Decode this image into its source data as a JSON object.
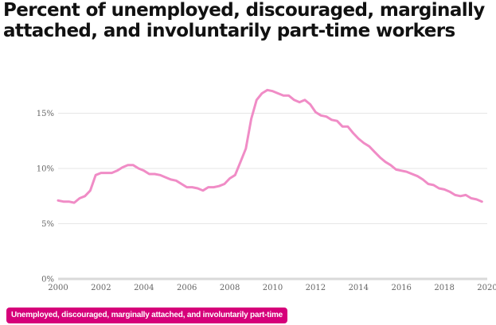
{
  "colors": {
    "series": "#f08cc6",
    "legend_bg": "#d6007a",
    "grid": "#e6e6e6"
  },
  "chart_data": {
    "type": "line",
    "title": "Percent of unemployed, discouraged, marginally attached, and involuntarily part-time workers",
    "xlabel": "",
    "ylabel": "",
    "xlim": [
      2000,
      2020
    ],
    "ylim": [
      0,
      20
    ],
    "x_ticks": [
      "2000",
      "2002",
      "2004",
      "2006",
      "2008",
      "2010",
      "2012",
      "2014",
      "2016",
      "2018",
      "2020"
    ],
    "y_ticks": [
      "0%",
      "5%",
      "10%",
      "15%"
    ],
    "grid": true,
    "legend_position": "bottom-left",
    "series": [
      {
        "name": "Unemployed, discouraged, marginally attached, and involuntarily part-time",
        "x": [
          2000.0,
          2000.25,
          2000.5,
          2000.75,
          2001.0,
          2001.25,
          2001.5,
          2001.75,
          2002.0,
          2002.25,
          2002.5,
          2002.75,
          2003.0,
          2003.25,
          2003.5,
          2003.75,
          2004.0,
          2004.25,
          2004.5,
          2004.75,
          2005.0,
          2005.25,
          2005.5,
          2005.75,
          2006.0,
          2006.25,
          2006.5,
          2006.75,
          2007.0,
          2007.25,
          2007.5,
          2007.75,
          2008.0,
          2008.25,
          2008.5,
          2008.75,
          2009.0,
          2009.25,
          2009.5,
          2009.75,
          2010.0,
          2010.25,
          2010.5,
          2010.75,
          2011.0,
          2011.25,
          2011.5,
          2011.75,
          2012.0,
          2012.25,
          2012.5,
          2012.75,
          2013.0,
          2013.25,
          2013.5,
          2013.75,
          2014.0,
          2014.25,
          2014.5,
          2014.75,
          2015.0,
          2015.25,
          2015.5,
          2015.75,
          2016.0,
          2016.25,
          2016.5,
          2016.75,
          2017.0,
          2017.25,
          2017.5,
          2017.75,
          2018.0,
          2018.25,
          2018.5,
          2018.75,
          2019.0,
          2019.25,
          2019.5,
          2019.75
        ],
        "values": [
          7.1,
          7.0,
          7.0,
          6.9,
          7.3,
          7.5,
          8.0,
          9.4,
          9.6,
          9.6,
          9.6,
          9.8,
          10.1,
          10.3,
          10.3,
          10.0,
          9.8,
          9.5,
          9.5,
          9.4,
          9.2,
          9.0,
          8.9,
          8.6,
          8.3,
          8.3,
          8.2,
          8.0,
          8.3,
          8.3,
          8.4,
          8.6,
          9.1,
          9.4,
          10.6,
          11.8,
          14.5,
          16.2,
          16.8,
          17.1,
          17.0,
          16.8,
          16.6,
          16.6,
          16.2,
          16.0,
          16.2,
          15.8,
          15.1,
          14.8,
          14.7,
          14.4,
          14.3,
          13.8,
          13.8,
          13.2,
          12.7,
          12.3,
          12.0,
          11.5,
          11.0,
          10.6,
          10.3,
          9.9,
          9.8,
          9.7,
          9.5,
          9.3,
          9.0,
          8.6,
          8.5,
          8.2,
          8.1,
          7.9,
          7.6,
          7.5,
          7.6,
          7.3,
          7.2,
          7.0
        ]
      }
    ]
  }
}
